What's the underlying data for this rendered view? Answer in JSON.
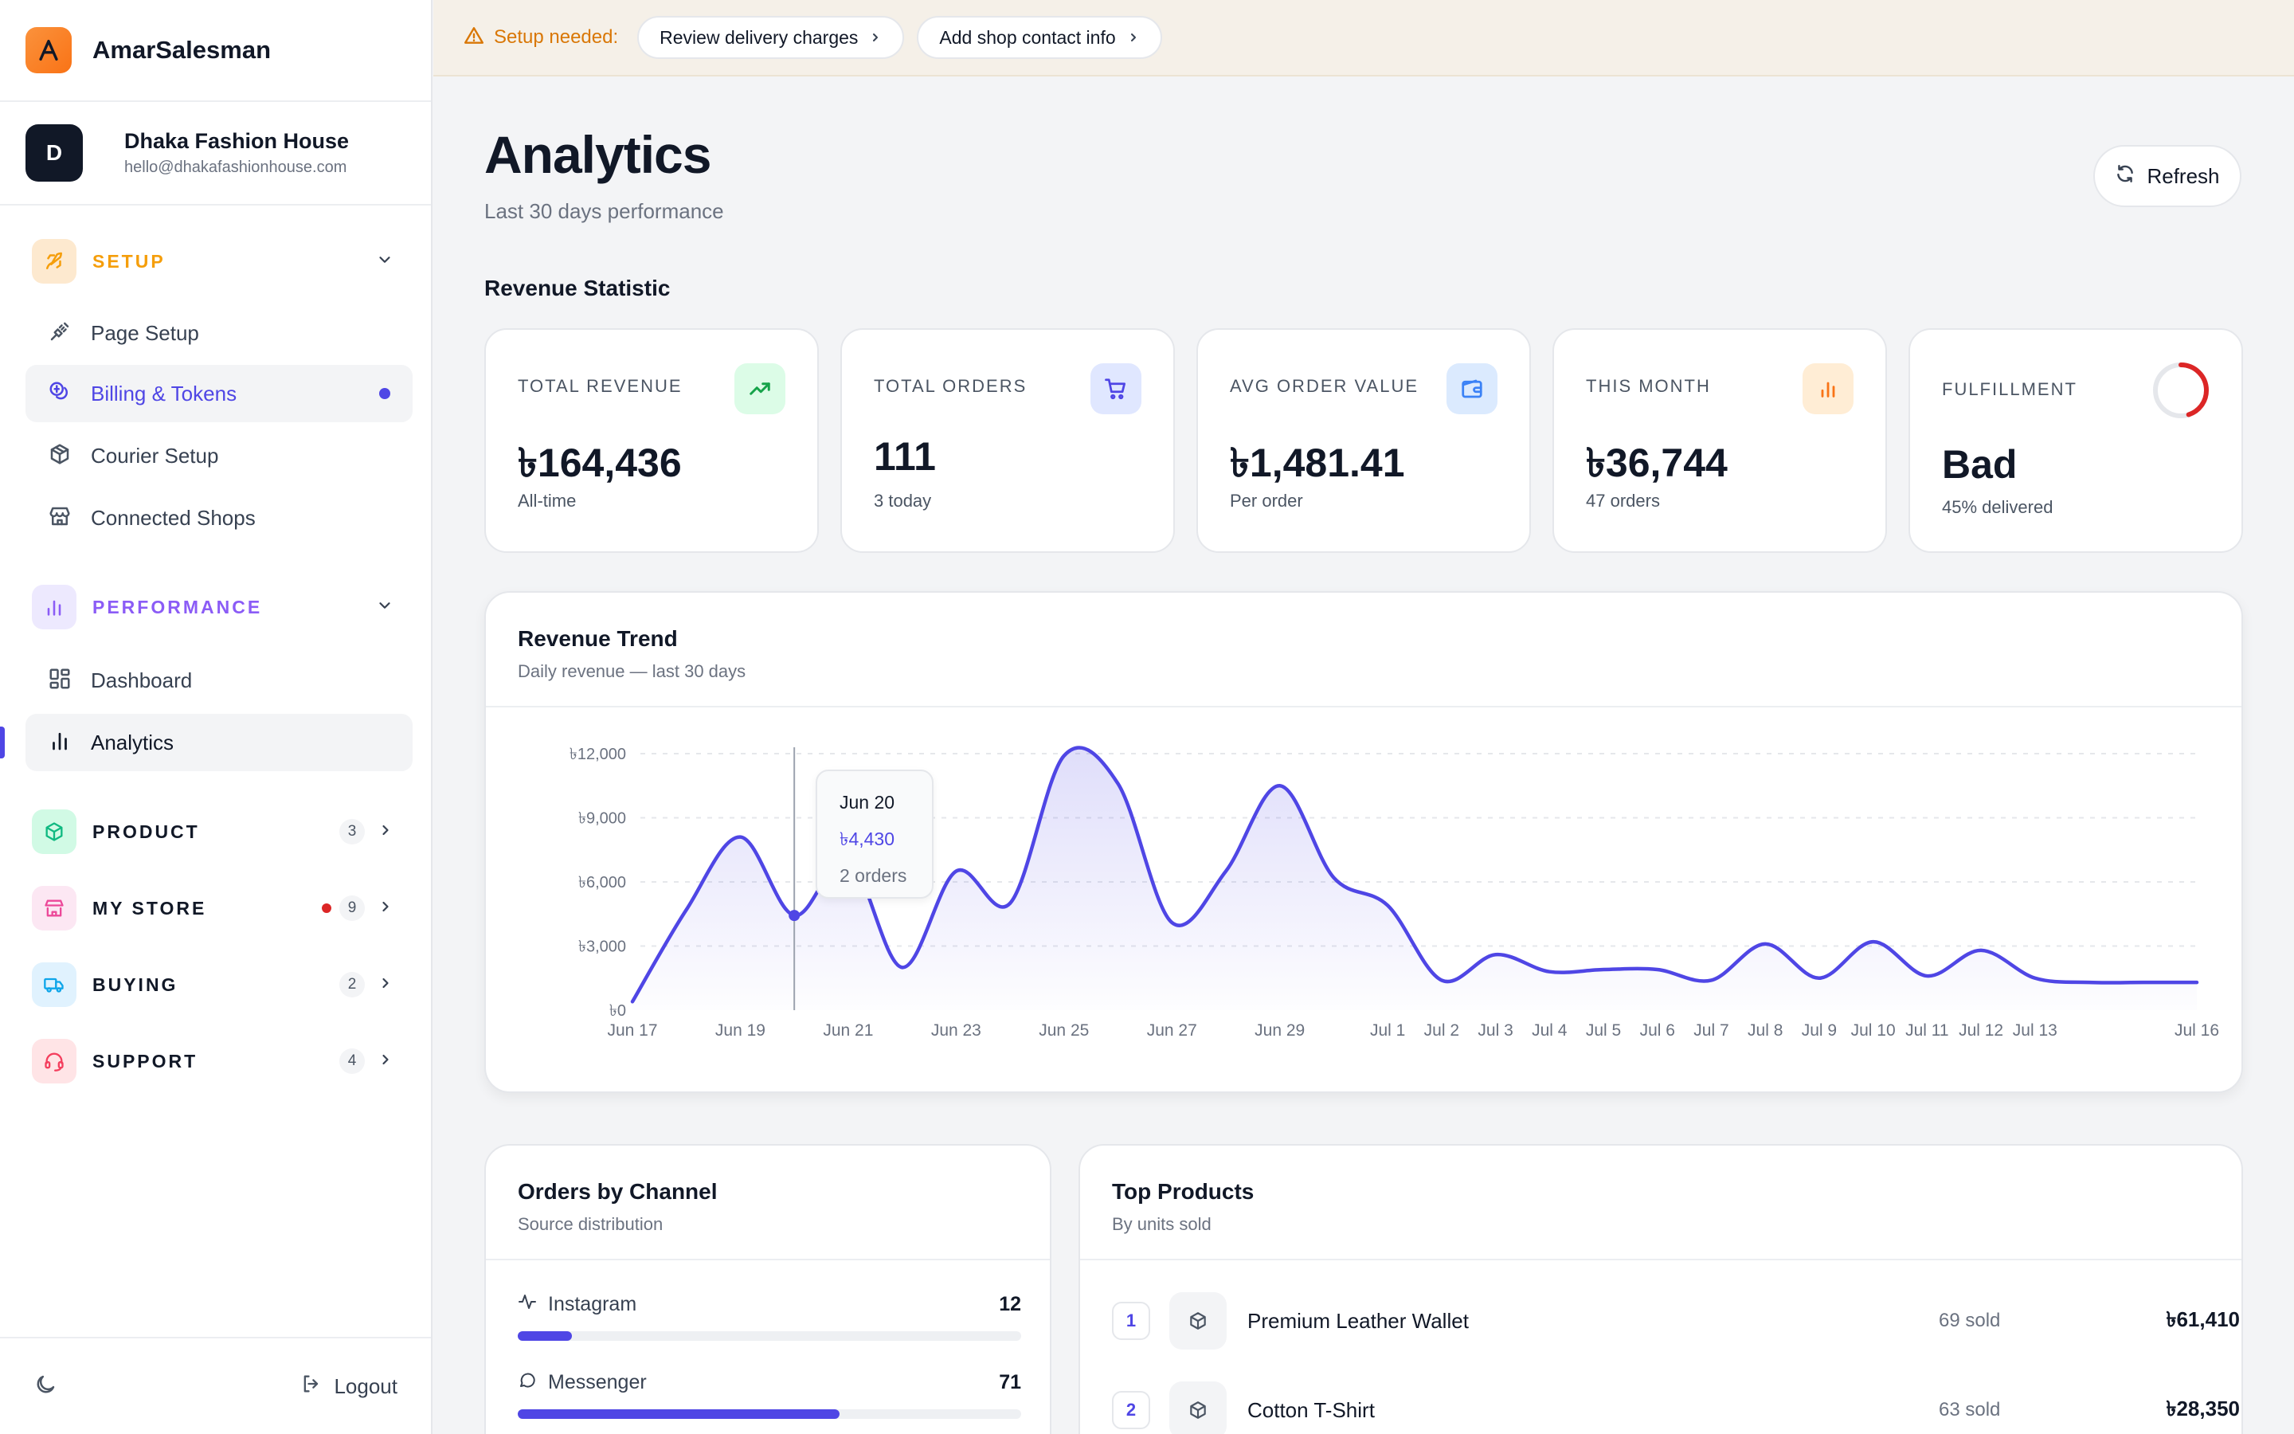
{
  "app": {
    "name": "AmarSalesman"
  },
  "account": {
    "initial": "D",
    "name": "Dhaka Fashion House",
    "email": "hello@dhakafashionhouse.com"
  },
  "sidebar": {
    "setup": {
      "label": "SETUP",
      "items": [
        {
          "label": "Page Setup",
          "icon": "plug-icon"
        },
        {
          "label": "Billing & Tokens",
          "icon": "coins-icon"
        },
        {
          "label": "Courier Setup",
          "icon": "package-icon"
        },
        {
          "label": "Connected Shops",
          "icon": "store-icon"
        }
      ]
    },
    "performance": {
      "label": "PERFORMANCE",
      "items": [
        {
          "label": "Dashboard",
          "icon": "grid-icon"
        },
        {
          "label": "Analytics",
          "icon": "bar-chart-icon"
        }
      ]
    },
    "groups": [
      {
        "label": "PRODUCT",
        "count": "3",
        "color": "#10b981"
      },
      {
        "label": "MY STORE",
        "count": "9",
        "color": "#ec4899"
      },
      {
        "label": "BUYING",
        "count": "2",
        "color": "#0ea5e9"
      },
      {
        "label": "SUPPORT",
        "count": "4",
        "color": "#f43f5e"
      }
    ],
    "logout": "Logout"
  },
  "banner": {
    "label": "Setup needed:",
    "actions": [
      "Review delivery charges",
      "Add shop contact info"
    ]
  },
  "page": {
    "title": "Analytics",
    "subtitle": "Last 30 days performance",
    "refresh": "Refresh",
    "section": "Revenue Statistic"
  },
  "stats": [
    {
      "label": "TOTAL REVENUE",
      "value": "৳164,436",
      "note": "All-time",
      "icon": "trending-up-icon",
      "color": "#16a34a"
    },
    {
      "label": "TOTAL ORDERS",
      "value": "111",
      "note": "3 today",
      "icon": "cart-icon",
      "color": "#4f46e5"
    },
    {
      "label": "AVG ORDER VALUE",
      "value": "৳1,481.41",
      "note": "Per order",
      "icon": "wallet-icon",
      "color": "#3b82f6"
    },
    {
      "label": "THIS MONTH",
      "value": "৳36,744",
      "note": "47 orders",
      "icon": "bar-chart-icon",
      "color": "#f97316"
    },
    {
      "label": "FULFILLMENT",
      "value": "Bad",
      "note": "45% delivered",
      "icon": "ring-icon",
      "color": "#dc2626",
      "fraction": 0.45
    }
  ],
  "trend": {
    "title": "Revenue Trend",
    "subtitle": "Daily revenue — last 30 days",
    "tooltip": {
      "date": "Jun 20",
      "value": "৳4,430",
      "orders": "2 orders"
    }
  },
  "chart_data": {
    "type": "area",
    "ylim": [
      0,
      12000
    ],
    "yticks": [
      {
        "v": 12000,
        "label": "৳12,000"
      },
      {
        "v": 9000,
        "label": "৳9,000"
      },
      {
        "v": 6000,
        "label": "৳6,000"
      },
      {
        "v": 3000,
        "label": "৳3,000"
      },
      {
        "v": 0,
        "label": "৳0"
      }
    ],
    "xticks": [
      "Jun 17",
      "Jun 19",
      "Jun 21",
      "Jun 23",
      "Jun 25",
      "Jun 27",
      "Jun 29",
      "Jul 1",
      "Jul 2",
      "Jul 3",
      "Jul 4",
      "Jul 5",
      "Jul 6",
      "Jul 7",
      "Jul 8",
      "Jul 9",
      "Jul 10",
      "Jul 11",
      "Jul 12",
      "Jul 13",
      "Jul 16"
    ],
    "xtick_index": [
      0,
      2,
      4,
      6,
      8,
      10,
      12,
      14,
      15,
      16,
      17,
      18,
      19,
      20,
      21,
      22,
      23,
      24,
      25,
      26,
      29
    ],
    "values": [
      400,
      4700,
      8100,
      4430,
      7100,
      2000,
      6500,
      5000,
      11900,
      10600,
      4100,
      6500,
      10500,
      6200,
      4900,
      1400,
      2600,
      1800,
      1900,
      1900,
      1400,
      3100,
      1500,
      3200,
      1600,
      2800,
      1500,
      1300,
      1300,
      1300
    ],
    "highlight_index": 3,
    "color": "#4f46e5"
  },
  "channels": {
    "title": "Orders by Channel",
    "subtitle": "Source distribution",
    "items": [
      {
        "label": "Instagram",
        "count": "12",
        "fraction": 0.107,
        "icon": "activity-icon"
      },
      {
        "label": "Messenger",
        "count": "71",
        "fraction": 0.64,
        "icon": "message-icon"
      }
    ]
  },
  "products": {
    "title": "Top Products",
    "subtitle": "By units sold",
    "items": [
      {
        "rank": "1",
        "name": "Premium Leather Wallet",
        "sold": "69 sold",
        "revenue": "৳61,410"
      },
      {
        "rank": "2",
        "name": "Cotton T-Shirt",
        "sold": "63 sold",
        "revenue": "৳28,350"
      }
    ]
  }
}
